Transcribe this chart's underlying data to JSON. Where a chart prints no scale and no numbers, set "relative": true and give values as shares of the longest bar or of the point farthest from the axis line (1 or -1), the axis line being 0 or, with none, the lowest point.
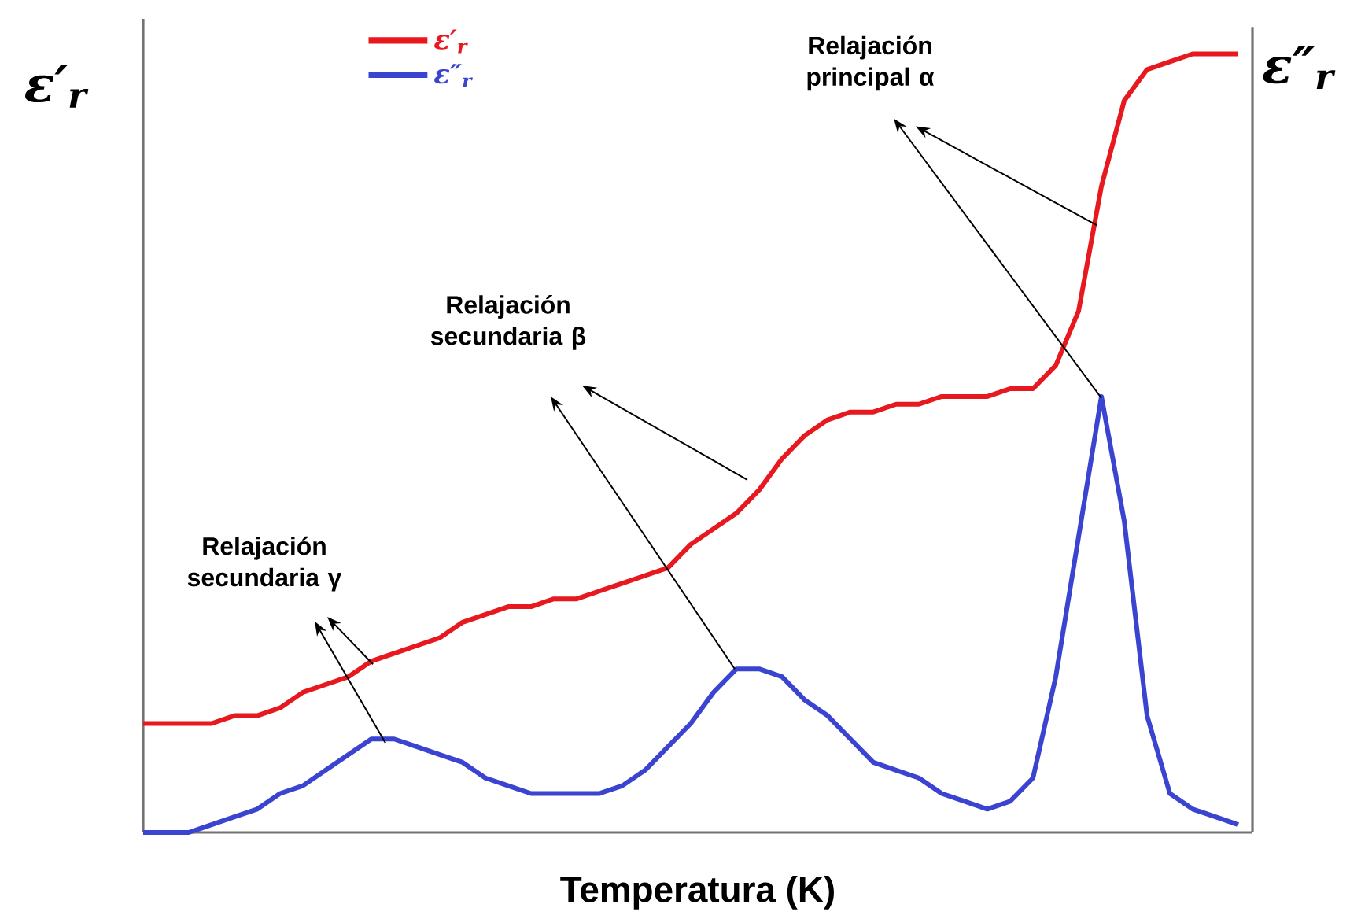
{
  "chart_data": {
    "type": "line",
    "relative": true,
    "tick_labels": false,
    "legend": "top left",
    "xlabel": "Temperatura (K)",
    "ylabel": "ε′$_{r}$",
    "y2label": "ε″$_{r}$",
    "categories": [
      null,
      null,
      null,
      null,
      null,
      null,
      null,
      null,
      null,
      null,
      null,
      null,
      null,
      null,
      null,
      null,
      null,
      null,
      null,
      null,
      null,
      null,
      null,
      null,
      null,
      null,
      null,
      null,
      null,
      null,
      null,
      null,
      null,
      null,
      null,
      null,
      null,
      null,
      null,
      null,
      null,
      null,
      null,
      null,
      null,
      null,
      null,
      null,
      null
    ],
    "series": [
      {
        "name": "ε′$_{r}$",
        "color": "#e8181f",
        "values": [
          0.14,
          0.14,
          0.14,
          0.14,
          0.15,
          0.15,
          0.16,
          0.18,
          0.19,
          0.2,
          0.22,
          0.23,
          0.24,
          0.25,
          0.27,
          0.28,
          0.29,
          0.29,
          0.3,
          0.3,
          0.31,
          0.32,
          0.33,
          0.34,
          0.37,
          0.39,
          0.41,
          0.44,
          0.48,
          0.51,
          0.53,
          0.54,
          0.54,
          0.55,
          0.55,
          0.56,
          0.56,
          0.56,
          0.57,
          0.57,
          0.6,
          0.67,
          0.83,
          0.94,
          0.98,
          0.99,
          1.0,
          1.0,
          1.0
        ]
      },
      {
        "name": "ε″$_{r}$",
        "color": "#3a44d0",
        "values": [
          0.0,
          0.0,
          0.0,
          0.01,
          0.02,
          0.03,
          0.05,
          0.06,
          0.08,
          0.1,
          0.12,
          0.12,
          0.11,
          0.1,
          0.09,
          0.07,
          0.06,
          0.05,
          0.05,
          0.05,
          0.05,
          0.06,
          0.08,
          0.11,
          0.14,
          0.18,
          0.21,
          0.21,
          0.2,
          0.17,
          0.15,
          0.12,
          0.09,
          0.08,
          0.07,
          0.05,
          0.04,
          0.03,
          0.04,
          0.07,
          0.2,
          0.38,
          0.56,
          0.4,
          0.15,
          0.05,
          0.03,
          0.02,
          0.01
        ]
      }
    ],
    "annotations": [
      "Relajación principal α",
      "Relajación secundaria β",
      "Relajación secundaria γ"
    ]
  }
}
